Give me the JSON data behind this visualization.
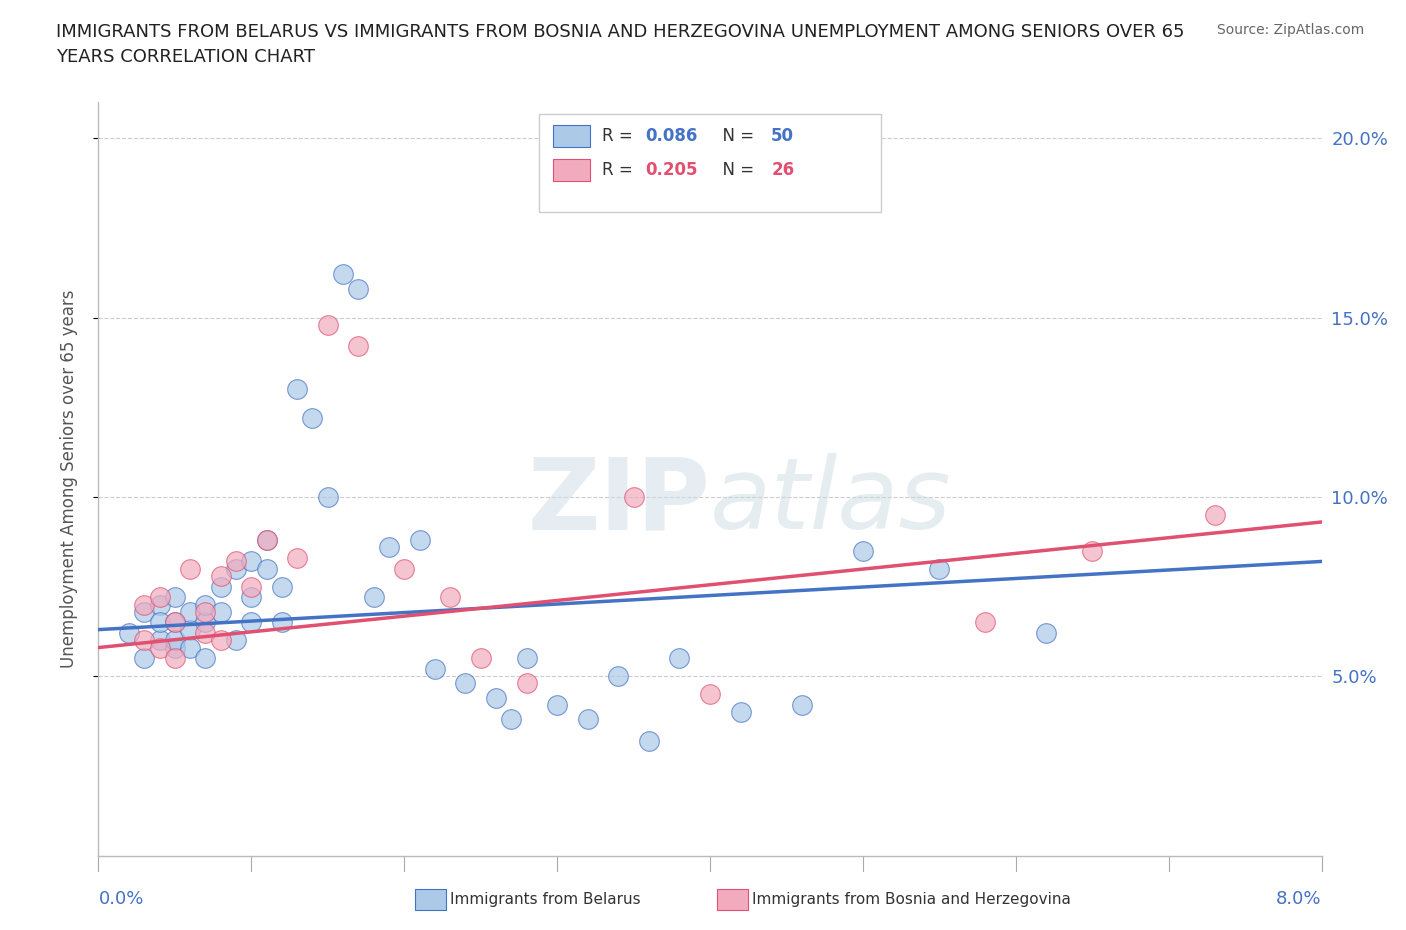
{
  "title_line1": "IMMIGRANTS FROM BELARUS VS IMMIGRANTS FROM BOSNIA AND HERZEGOVINA UNEMPLOYMENT AMONG SENIORS OVER 65",
  "title_line2": "YEARS CORRELATION CHART",
  "source": "Source: ZipAtlas.com",
  "ylabel": "Unemployment Among Seniors over 65 years",
  "xlim": [
    0.0,
    0.08
  ],
  "ylim": [
    0.0,
    0.21
  ],
  "yticks": [
    0.05,
    0.1,
    0.15,
    0.2
  ],
  "ytick_labels": [
    "5.0%",
    "10.0%",
    "15.0%",
    "20.0%"
  ],
  "color_belarus": "#adc9e8",
  "color_bosnia": "#f2abbe",
  "line_color_belarus": "#4472c4",
  "line_color_bosnia": "#e05070",
  "background_color": "#ffffff",
  "belarus_x": [
    0.002,
    0.003,
    0.003,
    0.004,
    0.004,
    0.004,
    0.005,
    0.005,
    0.005,
    0.005,
    0.006,
    0.006,
    0.006,
    0.007,
    0.007,
    0.007,
    0.008,
    0.008,
    0.009,
    0.009,
    0.01,
    0.01,
    0.01,
    0.011,
    0.011,
    0.012,
    0.012,
    0.013,
    0.014,
    0.015,
    0.016,
    0.017,
    0.018,
    0.019,
    0.021,
    0.022,
    0.024,
    0.026,
    0.027,
    0.028,
    0.03,
    0.032,
    0.034,
    0.036,
    0.038,
    0.042,
    0.046,
    0.05,
    0.055,
    0.062
  ],
  "belarus_y": [
    0.062,
    0.055,
    0.068,
    0.06,
    0.07,
    0.065,
    0.058,
    0.065,
    0.072,
    0.06,
    0.063,
    0.058,
    0.068,
    0.065,
    0.055,
    0.07,
    0.075,
    0.068,
    0.08,
    0.06,
    0.082,
    0.072,
    0.065,
    0.08,
    0.088,
    0.075,
    0.065,
    0.13,
    0.122,
    0.1,
    0.162,
    0.158,
    0.072,
    0.086,
    0.088,
    0.052,
    0.048,
    0.044,
    0.038,
    0.055,
    0.042,
    0.038,
    0.05,
    0.032,
    0.055,
    0.04,
    0.042,
    0.085,
    0.08,
    0.062
  ],
  "bosnia_x": [
    0.003,
    0.003,
    0.004,
    0.004,
    0.005,
    0.005,
    0.006,
    0.007,
    0.007,
    0.008,
    0.008,
    0.009,
    0.01,
    0.011,
    0.013,
    0.015,
    0.017,
    0.02,
    0.023,
    0.025,
    0.028,
    0.035,
    0.04,
    0.058,
    0.065,
    0.073
  ],
  "bosnia_y": [
    0.06,
    0.07,
    0.058,
    0.072,
    0.065,
    0.055,
    0.08,
    0.062,
    0.068,
    0.078,
    0.06,
    0.082,
    0.075,
    0.088,
    0.083,
    0.148,
    0.142,
    0.08,
    0.072,
    0.055,
    0.048,
    0.1,
    0.045,
    0.065,
    0.085,
    0.095
  ],
  "trend_bel_x0": 0.0,
  "trend_bel_y0": 0.063,
  "trend_bel_x1": 0.08,
  "trend_bel_y1": 0.082,
  "trend_bos_x0": 0.0,
  "trend_bos_y0": 0.058,
  "trend_bos_x1": 0.08,
  "trend_bos_y1": 0.093
}
